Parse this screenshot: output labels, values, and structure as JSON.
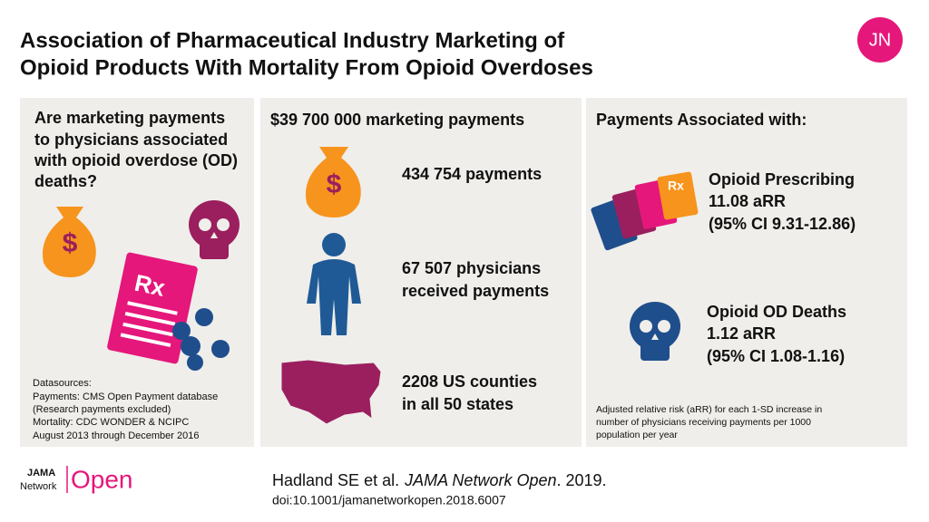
{
  "header": {
    "title": [
      "Association of Pharmaceutical Industry Marketing of",
      "Opioid Products With Mortality From Opioid Overdoses"
    ],
    "logo": "JN"
  },
  "icon_labels": {
    "dollar": "$",
    "rx": "Rx"
  },
  "panels": [
    {
      "question": [
        "Are marketing payments",
        "to physicians associated",
        "with opioid overdose (OD)",
        "deaths?"
      ],
      "datasources": [
        "Datasources:",
        "Payments: CMS Open Payment database",
        "(Research payments excluded)",
        "Mortality:  CDC WONDER & NCIPC",
        "August 2013 through December 2016"
      ]
    },
    {
      "heading": "$39 700 000 marketing payments",
      "items": [
        [
          "434 754 payments"
        ],
        [
          "67 507 physicians",
          "received payments"
        ],
        [
          "2208 US counties",
          "in all 50 states"
        ]
      ]
    },
    {
      "heading": "Payments Associated with:",
      "items": [
        [
          "Opioid  Prescribing",
          "11.08 aRR",
          "(95%  CI 9.31-12.86)"
        ],
        [
          "Opioid  OD Deaths",
          "1.12 aRR",
          "(95%  CI 1.08-1.16)"
        ]
      ],
      "footnote": [
        "Adjusted relative risk (aRR) for each 1-SD increase in",
        "number of physicians receiving payments per 1000",
        "population per year"
      ]
    }
  ],
  "footer": {
    "brand": [
      "JAMA",
      "Network",
      "Open"
    ],
    "citation": [
      "Hadland  SE et al.",
      "JAMA Network Open",
      ". 2019."
    ],
    "doi": "doi:10.1001/jamanetworkopen.2018.6007"
  }
}
